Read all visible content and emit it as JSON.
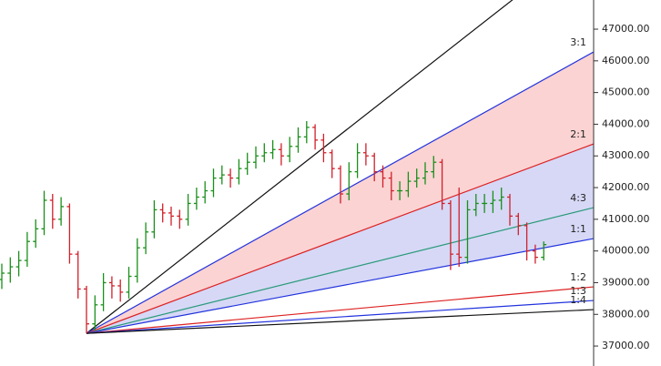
{
  "chart_data": {
    "type": "ohlc",
    "up_color": "#1a8f1a",
    "down_color": "#d0202a",
    "open": [
      39100,
      39300,
      39500,
      39700,
      40300,
      40700,
      41600,
      41000,
      41400,
      39900,
      38800,
      37700,
      38300,
      39000,
      38900,
      38700,
      39200,
      40100,
      40600,
      41300,
      41200,
      41100,
      41000,
      41500,
      41700,
      41900,
      42300,
      42400,
      42300,
      42600,
      42800,
      43000,
      43100,
      43200,
      43000,
      43300,
      43600,
      43900,
      43500,
      43100,
      42600,
      41800,
      42500,
      43100,
      43000,
      42500,
      42300,
      41900,
      41900,
      42200,
      42300,
      42500,
      42800,
      41500,
      39900,
      39800,
      41300,
      41500,
      41500,
      41600,
      41700,
      41100,
      40800,
      40000,
      39800
    ],
    "high": [
      39600,
      39800,
      40000,
      40600,
      41000,
      41900,
      41800,
      41700,
      41500,
      40000,
      38900,
      38600,
      39300,
      39200,
      39100,
      39500,
      40400,
      40900,
      41600,
      41500,
      41400,
      41300,
      41800,
      42000,
      42200,
      42600,
      42700,
      42600,
      42900,
      43100,
      43300,
      43400,
      43500,
      43400,
      43600,
      43900,
      44100,
      44000,
      43700,
      43200,
      42700,
      42800,
      43400,
      43400,
      43100,
      42700,
      42500,
      42200,
      42500,
      42600,
      42800,
      43000,
      42900,
      41600,
      42000,
      41600,
      41800,
      41800,
      41900,
      42000,
      41800,
      41200,
      40900,
      40200,
      40300
    ],
    "low": [
      38800,
      39000,
      39200,
      39500,
      40100,
      40500,
      40700,
      40800,
      39600,
      38500,
      37400,
      37500,
      38100,
      38500,
      38400,
      38500,
      39000,
      39900,
      40400,
      40900,
      40800,
      40700,
      40800,
      41300,
      41500,
      41700,
      42100,
      42000,
      42100,
      42400,
      42600,
      42800,
      42900,
      42700,
      42800,
      43100,
      43400,
      43200,
      42800,
      42300,
      41500,
      41600,
      42300,
      42700,
      42200,
      42000,
      41600,
      41600,
      41700,
      42000,
      42100,
      42300,
      41300,
      39400,
      39500,
      39600,
      41100,
      41200,
      41200,
      41300,
      40800,
      40500,
      39700,
      39600,
      39700
    ],
    "close": [
      39300,
      39500,
      39700,
      40300,
      40700,
      41600,
      41000,
      41400,
      39900,
      38800,
      37700,
      38300,
      39000,
      38900,
      38700,
      39200,
      40100,
      40600,
      41300,
      41200,
      41100,
      41000,
      41500,
      41700,
      41900,
      42300,
      42400,
      42300,
      42600,
      42800,
      43000,
      43100,
      43200,
      43000,
      43300,
      43600,
      43900,
      43500,
      43100,
      42600,
      41800,
      42500,
      43100,
      43000,
      42500,
      42300,
      41900,
      41900,
      42200,
      42300,
      42500,
      42800,
      41500,
      39900,
      39800,
      41300,
      41500,
      41500,
      41600,
      41700,
      41100,
      40800,
      40000,
      39800,
      40200
    ],
    "ylim": [
      36370,
      47920
    ],
    "yticks": [
      {
        "value": 37000,
        "label": "37000.00"
      },
      {
        "value": 38000,
        "label": "38000.00"
      },
      {
        "value": 39000,
        "label": "39000.00"
      },
      {
        "value": 40000,
        "label": "40000.00"
      },
      {
        "value": 41000,
        "label": "41000.00"
      },
      {
        "value": 42000,
        "label": "42000.00"
      },
      {
        "value": 43000,
        "label": "43000.00"
      },
      {
        "value": 44000,
        "label": "44000.00"
      },
      {
        "value": 45000,
        "label": "45000.00"
      },
      {
        "value": 46000,
        "label": "46000.00"
      },
      {
        "value": 47000,
        "label": "47000.00"
      }
    ],
    "fan": {
      "origin_index": 10,
      "origin_price": 37400,
      "lines": [
        {
          "end": 49930,
          "color": "#111111"
        },
        {
          "name": "3:1",
          "end": 46282,
          "color": "#2233dd"
        },
        {
          "name": "2:1",
          "end": 43379,
          "color": "#dd2222"
        },
        {
          "name": "4:3",
          "end": 41368,
          "color": "#2a9a7a"
        },
        {
          "name": "1:1",
          "end": 40391,
          "color": "#2233dd"
        },
        {
          "name": "1:2",
          "end": 38868,
          "color": "#dd2222"
        },
        {
          "name": "1:3",
          "end": 38437,
          "color": "#2233dd"
        },
        {
          "name": "1:4",
          "end": 38149,
          "color": "#111111"
        }
      ],
      "fills": [
        {
          "from": 1,
          "to": 2,
          "color": "#fbd3d3"
        },
        {
          "from": 2,
          "to": 4,
          "color": "#d6d8f6"
        }
      ]
    }
  }
}
